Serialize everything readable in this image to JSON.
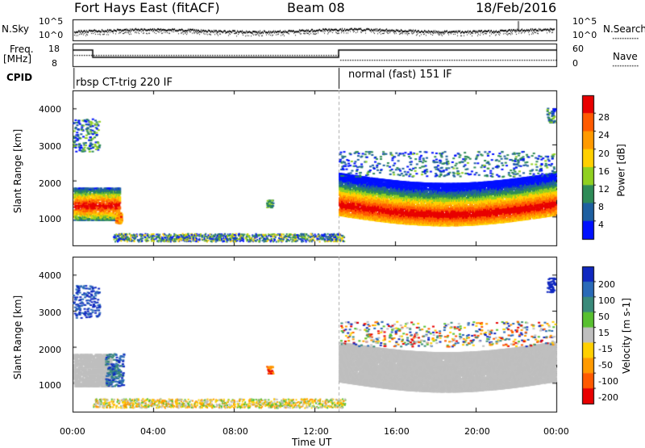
{
  "header": {
    "station": "Fort Hays East (fitACF)",
    "beam": "Beam 08",
    "date": "18/Feb/2016"
  },
  "strip_labels": {
    "nsky": "N.Sky",
    "nsearch": "N.Search",
    "freq_top": "Freq.",
    "freq_unit": "[MHz]",
    "nave": "Nave",
    "cpid": "CPID",
    "mode_a": "rbsp CT-trig 220 IF",
    "mode_b": "normal (fast) 151 IF"
  },
  "noise_axis": {
    "left_ticks": [
      "10^5",
      "10^0"
    ],
    "right_ticks": [
      "10^5",
      "10^0"
    ]
  },
  "freq_axis": {
    "left_ticks": [
      "18",
      "8"
    ],
    "right_ticks": [
      "60",
      "0"
    ]
  },
  "chart_data": [
    {
      "type": "heatmap",
      "title": "",
      "ylabel": "Slant Range [km]",
      "xlabel": "",
      "ylim": [
        200,
        4500
      ],
      "yticks": [
        "1000",
        "2000",
        "3000",
        "4000"
      ],
      "colorbar": {
        "label": "Power [dB]",
        "ticks": [
          "28",
          "24",
          "20",
          "16",
          "12",
          "8",
          "4"
        ],
        "colors": [
          "#e80000",
          "#ff5a00",
          "#ff9a00",
          "#ffd000",
          "#90d020",
          "#2e8b57",
          "#1e5fa0",
          "#0010ff"
        ]
      }
    },
    {
      "type": "heatmap",
      "title": "",
      "ylabel": "Slant Range [km]",
      "xlabel": "Time UT",
      "ylim": [
        200,
        4500
      ],
      "yticks": [
        "1000",
        "2000",
        "3000",
        "4000"
      ],
      "xticks": [
        "00:00",
        "04:00",
        "08:00",
        "12:00",
        "16:00",
        "20:00",
        "00:00"
      ],
      "xrange_hours": [
        0,
        24
      ],
      "colorbar": {
        "label": "Velocity [m s-1]",
        "ticks": [
          "200",
          "100",
          "50",
          "15",
          "-15",
          "-50",
          "-100",
          "-200"
        ],
        "colors": [
          "#1028c0",
          "#2a6ab8",
          "#3a8a7a",
          "#58c030",
          "#bfbfbf",
          "#ffd000",
          "#ff9a00",
          "#ff5a00",
          "#e80000"
        ]
      },
      "regions": [
        {
          "t0": 0.0,
          "t1": 1.0,
          "r0": 900,
          "r1": 1800,
          "class": "ground"
        },
        {
          "t0": 13.0,
          "t1": 23.8,
          "r0": 950,
          "r1": 2150,
          "class": "ground"
        },
        {
          "t0": 9.6,
          "t1": 9.9,
          "r0": 1300,
          "r1": 1500,
          "class": "ionos"
        }
      ]
    }
  ]
}
